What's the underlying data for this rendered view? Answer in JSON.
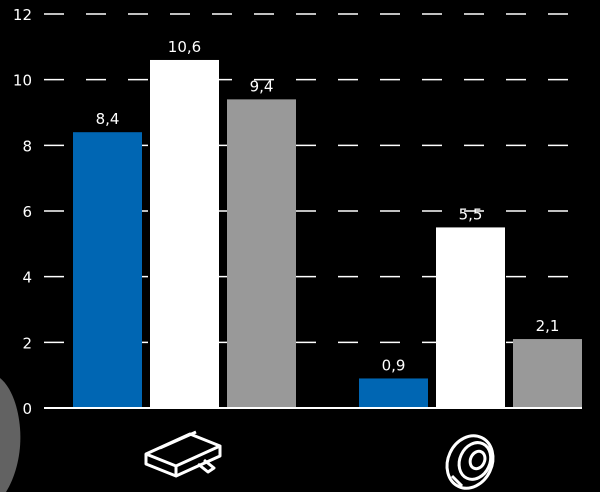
{
  "chart_data": {
    "type": "bar",
    "title": "",
    "xlabel": "",
    "ylabel": "",
    "ylim": [
      0,
      12
    ],
    "yticks": [
      0,
      2,
      4,
      6,
      8,
      10,
      12
    ],
    "grid": "dashed horizontal",
    "category_icons": [
      "brake-pad-icon",
      "brake-disc-icon"
    ],
    "series_colors": [
      "#0066b3",
      "#ffffff",
      "#999999"
    ],
    "series": [
      {
        "values": [
          8.4,
          0.9
        ],
        "labels": [
          "8,4",
          "0,9"
        ]
      },
      {
        "values": [
          10.6,
          5.5
        ],
        "labels": [
          "10,6",
          "5,5"
        ]
      },
      {
        "values": [
          9.4,
          2.1
        ],
        "labels": [
          "9,4",
          "2,1"
        ]
      }
    ]
  }
}
